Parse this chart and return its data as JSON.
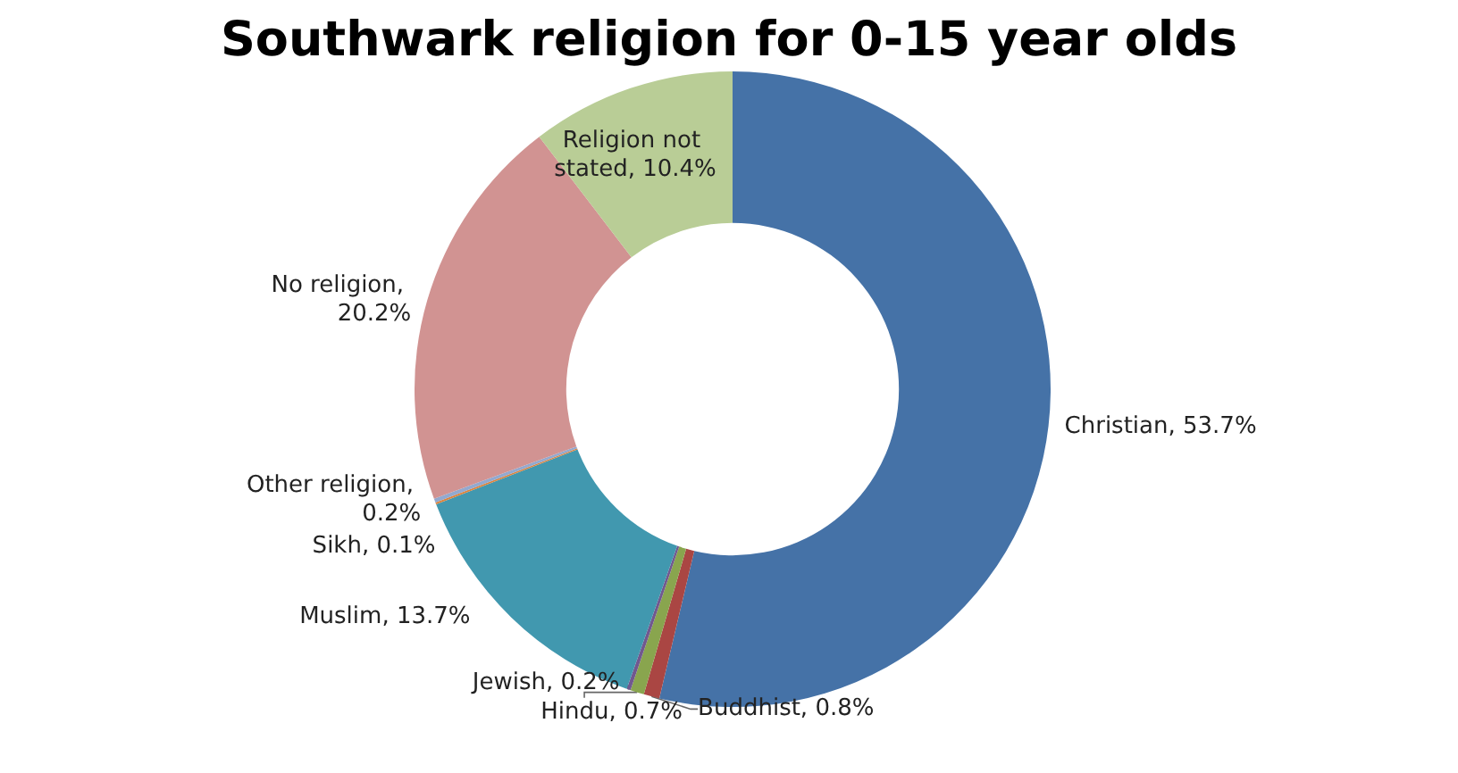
{
  "chart_data": {
    "type": "donut",
    "title": "Southwark religion for 0-15 year olds",
    "categories": [
      "Christian",
      "Buddhist",
      "Hindu",
      "Jewish",
      "Muslim",
      "Sikh",
      "Other religion",
      "No religion",
      "Religion not stated"
    ],
    "values": [
      53.7,
      0.8,
      0.7,
      0.2,
      13.7,
      0.1,
      0.2,
      20.2,
      10.4
    ],
    "colors": [
      "#4572a7",
      "#aa4643",
      "#89a54e",
      "#71588f",
      "#4198af",
      "#db843d",
      "#93a9cf",
      "#d19392",
      "#b9cd96"
    ],
    "value_labels": [
      ", 53.7%",
      ", 0.8%",
      ", 0.7%",
      ", 0.2%",
      ", 13.7%",
      ", 0.1%",
      ", 0.2%",
      ", 20.2%",
      ", 10.4%"
    ],
    "legend": false
  }
}
